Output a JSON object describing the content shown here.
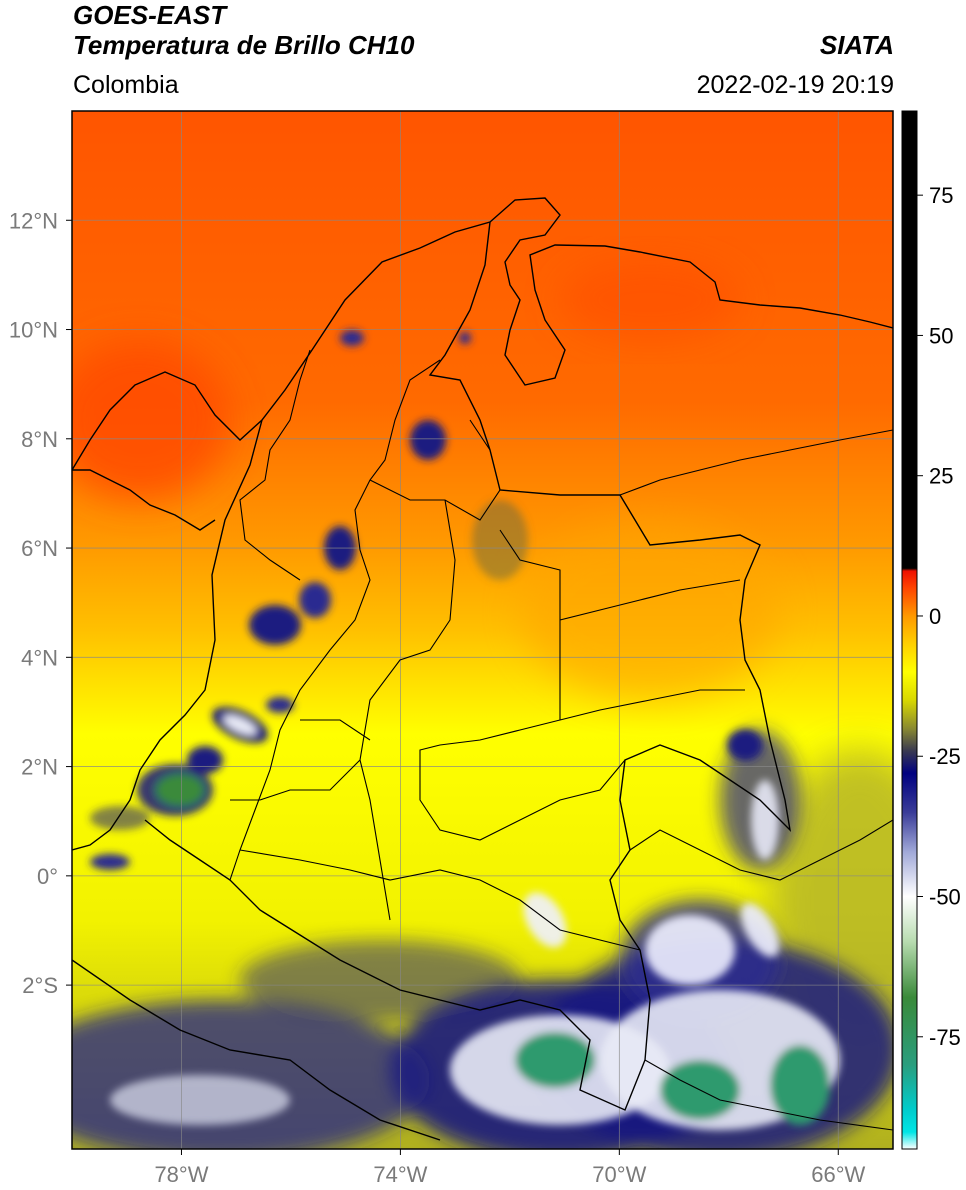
{
  "header": {
    "satellite": "GOES-EAST",
    "product": "Temperatura de Brillo CH10",
    "region": "Colombia",
    "agency": "SIATA",
    "datetime": "2022-02-19 20:19"
  },
  "map": {
    "lon_range": [
      -80,
      -65
    ],
    "lat_range": [
      -5,
      14
    ],
    "lat_ticks": [
      {
        "value": 12,
        "label": "12°N"
      },
      {
        "value": 10,
        "label": "10°N"
      },
      {
        "value": 8,
        "label": "8°N"
      },
      {
        "value": 6,
        "label": "6°N"
      },
      {
        "value": 4,
        "label": "4°N"
      },
      {
        "value": 2,
        "label": "2°N"
      },
      {
        "value": 0,
        "label": "0°"
      },
      {
        "value": -2,
        "label": "2°S"
      }
    ],
    "lon_ticks": [
      {
        "value": -78,
        "label": "78°W"
      },
      {
        "value": -74,
        "label": "74°W"
      },
      {
        "value": -70,
        "label": "70°W"
      },
      {
        "value": -66,
        "label": "66°W"
      }
    ],
    "grid": true
  },
  "colorbar": {
    "range": [
      -95,
      90
    ],
    "ticks": [
      {
        "value": 75,
        "label": "75"
      },
      {
        "value": 50,
        "label": "50"
      },
      {
        "value": 25,
        "label": "25"
      },
      {
        "value": 0,
        "label": "0"
      },
      {
        "value": -25,
        "label": "-25"
      },
      {
        "value": -50,
        "label": "-50"
      },
      {
        "value": -75,
        "label": "-75"
      }
    ],
    "stops": [
      {
        "value": -95,
        "color": "#ffffff"
      },
      {
        "value": -92,
        "color": "#00e5e5"
      },
      {
        "value": -88,
        "color": "#00cccc"
      },
      {
        "value": -80,
        "color": "#2a9e7e"
      },
      {
        "value": -68,
        "color": "#3a8a3a"
      },
      {
        "value": -58,
        "color": "#b8dcb0"
      },
      {
        "value": -50,
        "color": "#ffffff"
      },
      {
        "value": -42,
        "color": "#a0a8d8"
      },
      {
        "value": -35,
        "color": "#3a3c98"
      },
      {
        "value": -28,
        "color": "#000080"
      },
      {
        "value": -24,
        "color": "#3a3a50"
      },
      {
        "value": -20,
        "color": "#8a8a30"
      },
      {
        "value": -15,
        "color": "#d8d800"
      },
      {
        "value": -10,
        "color": "#ffff00"
      },
      {
        "value": -5,
        "color": "#ffd000"
      },
      {
        "value": 0,
        "color": "#ff9900"
      },
      {
        "value": 5,
        "color": "#ff4400"
      },
      {
        "value": 8,
        "color": "#ee1100"
      },
      {
        "value": 8.5,
        "color": "#000000"
      },
      {
        "value": 90,
        "color": "#000000"
      }
    ]
  }
}
